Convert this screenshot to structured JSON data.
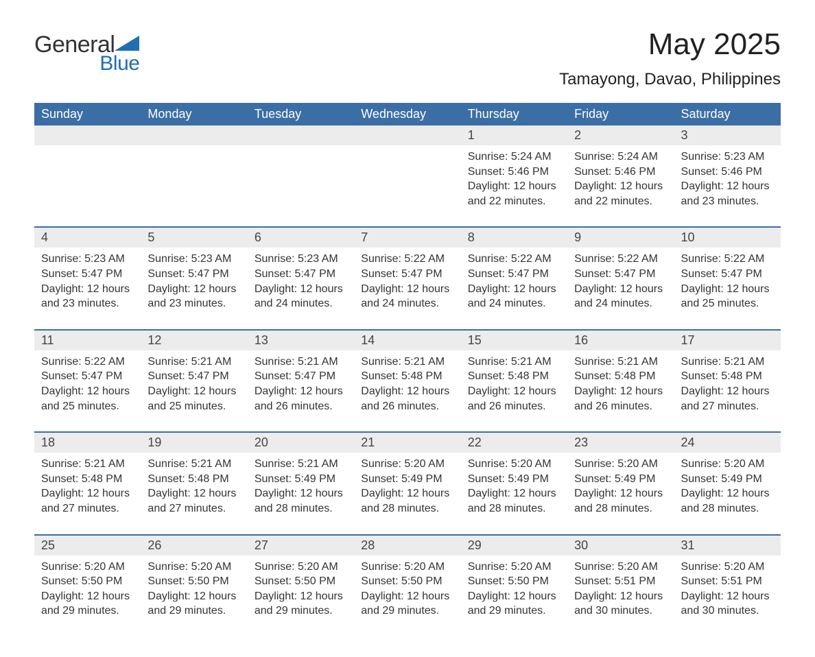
{
  "logo": {
    "word1": "General",
    "word2": "Blue",
    "tri_color": "#1f6fb2"
  },
  "title": {
    "month_year": "May 2025",
    "location": "Tamayong, Davao, Philippines"
  },
  "colors": {
    "header_bg": "#3b6ea5",
    "header_text": "#ffffff",
    "daynum_bg": "#ececec",
    "text": "#333333",
    "rule": "#3b6ea5",
    "page_bg": "#ffffff"
  },
  "fonts": {
    "base_family": "Arial",
    "title_size_pt": 33,
    "location_size_pt": 18,
    "dow_size_pt": 14,
    "body_size_pt": 12
  },
  "layout": {
    "columns": 7,
    "weeks": 5,
    "first_day_column_index": 4
  },
  "days_of_week": [
    "Sunday",
    "Monday",
    "Tuesday",
    "Wednesday",
    "Thursday",
    "Friday",
    "Saturday"
  ],
  "labels": {
    "sunrise": "Sunrise:",
    "sunset": "Sunset:",
    "daylight": "Daylight:"
  },
  "days": [
    {
      "n": 1,
      "sunrise": "5:24 AM",
      "sunset": "5:46 PM",
      "daylight": "12 hours and 22 minutes."
    },
    {
      "n": 2,
      "sunrise": "5:24 AM",
      "sunset": "5:46 PM",
      "daylight": "12 hours and 22 minutes."
    },
    {
      "n": 3,
      "sunrise": "5:23 AM",
      "sunset": "5:46 PM",
      "daylight": "12 hours and 23 minutes."
    },
    {
      "n": 4,
      "sunrise": "5:23 AM",
      "sunset": "5:47 PM",
      "daylight": "12 hours and 23 minutes."
    },
    {
      "n": 5,
      "sunrise": "5:23 AM",
      "sunset": "5:47 PM",
      "daylight": "12 hours and 23 minutes."
    },
    {
      "n": 6,
      "sunrise": "5:23 AM",
      "sunset": "5:47 PM",
      "daylight": "12 hours and 24 minutes."
    },
    {
      "n": 7,
      "sunrise": "5:22 AM",
      "sunset": "5:47 PM",
      "daylight": "12 hours and 24 minutes."
    },
    {
      "n": 8,
      "sunrise": "5:22 AM",
      "sunset": "5:47 PM",
      "daylight": "12 hours and 24 minutes."
    },
    {
      "n": 9,
      "sunrise": "5:22 AM",
      "sunset": "5:47 PM",
      "daylight": "12 hours and 24 minutes."
    },
    {
      "n": 10,
      "sunrise": "5:22 AM",
      "sunset": "5:47 PM",
      "daylight": "12 hours and 25 minutes."
    },
    {
      "n": 11,
      "sunrise": "5:22 AM",
      "sunset": "5:47 PM",
      "daylight": "12 hours and 25 minutes."
    },
    {
      "n": 12,
      "sunrise": "5:21 AM",
      "sunset": "5:47 PM",
      "daylight": "12 hours and 25 minutes."
    },
    {
      "n": 13,
      "sunrise": "5:21 AM",
      "sunset": "5:47 PM",
      "daylight": "12 hours and 26 minutes."
    },
    {
      "n": 14,
      "sunrise": "5:21 AM",
      "sunset": "5:48 PM",
      "daylight": "12 hours and 26 minutes."
    },
    {
      "n": 15,
      "sunrise": "5:21 AM",
      "sunset": "5:48 PM",
      "daylight": "12 hours and 26 minutes."
    },
    {
      "n": 16,
      "sunrise": "5:21 AM",
      "sunset": "5:48 PM",
      "daylight": "12 hours and 26 minutes."
    },
    {
      "n": 17,
      "sunrise": "5:21 AM",
      "sunset": "5:48 PM",
      "daylight": "12 hours and 27 minutes."
    },
    {
      "n": 18,
      "sunrise": "5:21 AM",
      "sunset": "5:48 PM",
      "daylight": "12 hours and 27 minutes."
    },
    {
      "n": 19,
      "sunrise": "5:21 AM",
      "sunset": "5:48 PM",
      "daylight": "12 hours and 27 minutes."
    },
    {
      "n": 20,
      "sunrise": "5:21 AM",
      "sunset": "5:49 PM",
      "daylight": "12 hours and 28 minutes."
    },
    {
      "n": 21,
      "sunrise": "5:20 AM",
      "sunset": "5:49 PM",
      "daylight": "12 hours and 28 minutes."
    },
    {
      "n": 22,
      "sunrise": "5:20 AM",
      "sunset": "5:49 PM",
      "daylight": "12 hours and 28 minutes."
    },
    {
      "n": 23,
      "sunrise": "5:20 AM",
      "sunset": "5:49 PM",
      "daylight": "12 hours and 28 minutes."
    },
    {
      "n": 24,
      "sunrise": "5:20 AM",
      "sunset": "5:49 PM",
      "daylight": "12 hours and 28 minutes."
    },
    {
      "n": 25,
      "sunrise": "5:20 AM",
      "sunset": "5:50 PM",
      "daylight": "12 hours and 29 minutes."
    },
    {
      "n": 26,
      "sunrise": "5:20 AM",
      "sunset": "5:50 PM",
      "daylight": "12 hours and 29 minutes."
    },
    {
      "n": 27,
      "sunrise": "5:20 AM",
      "sunset": "5:50 PM",
      "daylight": "12 hours and 29 minutes."
    },
    {
      "n": 28,
      "sunrise": "5:20 AM",
      "sunset": "5:50 PM",
      "daylight": "12 hours and 29 minutes."
    },
    {
      "n": 29,
      "sunrise": "5:20 AM",
      "sunset": "5:50 PM",
      "daylight": "12 hours and 29 minutes."
    },
    {
      "n": 30,
      "sunrise": "5:20 AM",
      "sunset": "5:51 PM",
      "daylight": "12 hours and 30 minutes."
    },
    {
      "n": 31,
      "sunrise": "5:20 AM",
      "sunset": "5:51 PM",
      "daylight": "12 hours and 30 minutes."
    }
  ]
}
